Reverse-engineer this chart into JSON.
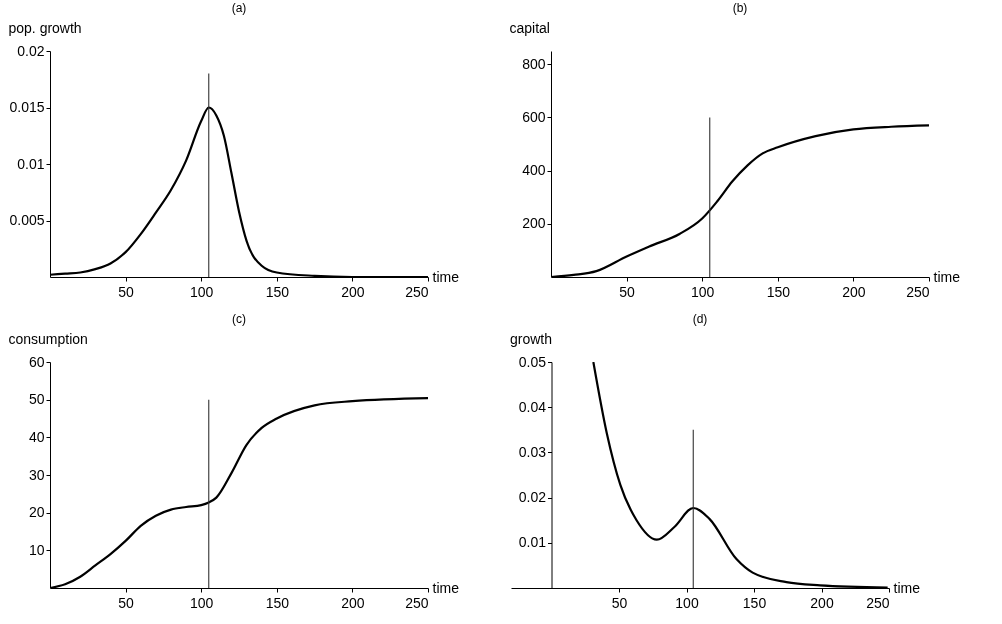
{
  "chart_data": [
    {
      "type": "line",
      "title": "(a)",
      "xlabel": "time",
      "ylabel": "pop. growth",
      "xlim": [
        0,
        250
      ],
      "ylim": [
        0,
        0.02
      ],
      "xticks": [
        50,
        100,
        150,
        200,
        250
      ],
      "yticks": [
        0.005,
        0.01,
        0.015,
        0.02
      ],
      "grid": false,
      "x": [
        0,
        10,
        20,
        30,
        40,
        50,
        60,
        70,
        80,
        90,
        100,
        105,
        110,
        115,
        120,
        125,
        130,
        140,
        150,
        175,
        200,
        250
      ],
      "series": [
        {
          "color": "#000000",
          "values": [
            0.0002,
            0.0003,
            0.0004,
            0.0007,
            0.0012,
            0.0022,
            0.0038,
            0.0057,
            0.0077,
            0.0103,
            0.0138,
            0.015,
            0.0143,
            0.0125,
            0.0092,
            0.0058,
            0.0032,
            0.001,
            0.0004,
            0.0001,
            0,
            0
          ]
        },
        {
          "type": "line",
          "color": "#333333",
          "x": [
            105,
            105
          ],
          "values": [
            0,
            0.018
          ]
        }
      ]
    },
    {
      "type": "line",
      "title": "(b)",
      "xlabel": "time",
      "ylabel": "capital",
      "xlim": [
        0,
        250
      ],
      "ylim": [
        0,
        850
      ],
      "xticks": [
        50,
        100,
        150,
        200,
        250
      ],
      "yticks": [
        200,
        400,
        600,
        800
      ],
      "grid": false,
      "x": [
        0,
        15,
        30,
        50,
        65,
        85,
        100,
        110,
        120,
        130,
        140,
        150,
        175,
        200,
        225,
        250
      ],
      "series": [
        {
          "color": "#000000",
          "values": [
            0,
            8,
            22,
            77,
            115,
            162,
            220,
            285,
            360,
            420,
            465,
            488,
            530,
            555,
            565,
            570
          ]
        },
        {
          "type": "line",
          "color": "#333333",
          "x": [
            105,
            105
          ],
          "values": [
            0,
            600
          ]
        }
      ]
    },
    {
      "type": "line",
      "title": "(c)",
      "xlabel": "time",
      "ylabel": "consumption",
      "xlim": [
        0,
        250
      ],
      "ylim": [
        0,
        60
      ],
      "xticks": [
        50,
        100,
        150,
        200,
        250
      ],
      "yticks": [
        10,
        20,
        30,
        40,
        50,
        60
      ],
      "grid": false,
      "x": [
        0,
        10,
        20,
        30,
        40,
        50,
        60,
        70,
        80,
        90,
        100,
        105,
        110,
        120,
        130,
        140,
        150,
        175,
        200,
        250
      ],
      "series": [
        {
          "color": "#000000",
          "values": [
            0,
            1,
            3,
            6,
            9,
            12.5,
            16.5,
            19.2,
            20.8,
            21.5,
            22,
            22.7,
            24,
            30.5,
            38,
            42.5,
            45,
            48.5,
            49.6,
            50.4
          ]
        },
        {
          "type": "line",
          "color": "#333333",
          "x": [
            105,
            105
          ],
          "values": [
            0,
            50
          ]
        }
      ]
    },
    {
      "type": "line",
      "title": "(d)",
      "xlabel": "time",
      "ylabel": "growth",
      "xlim": [
        -30,
        250
      ],
      "ylim": [
        0,
        0.05
      ],
      "xticks": [
        50,
        100,
        150,
        200,
        250
      ],
      "yticks": [
        0.01,
        0.02,
        0.03,
        0.04,
        0.05
      ],
      "grid": false,
      "series": [
        {
          "color": "#000000",
          "x": [
            31,
            41,
            51,
            63,
            78,
            91,
            105,
            117,
            137,
            149,
            174,
            199,
            249
          ],
          "values": [
            0.05,
            0.0342,
            0.0228,
            0.015,
            0.0107,
            0.0135,
            0.0177,
            0.0153,
            0.0064,
            0.0034,
            0.0013,
            0.0006,
            0.0001
          ]
        },
        {
          "type": "line",
          "color": "#333333",
          "x": [
            105,
            105
          ],
          "values": [
            0,
            0.035
          ]
        }
      ]
    }
  ]
}
